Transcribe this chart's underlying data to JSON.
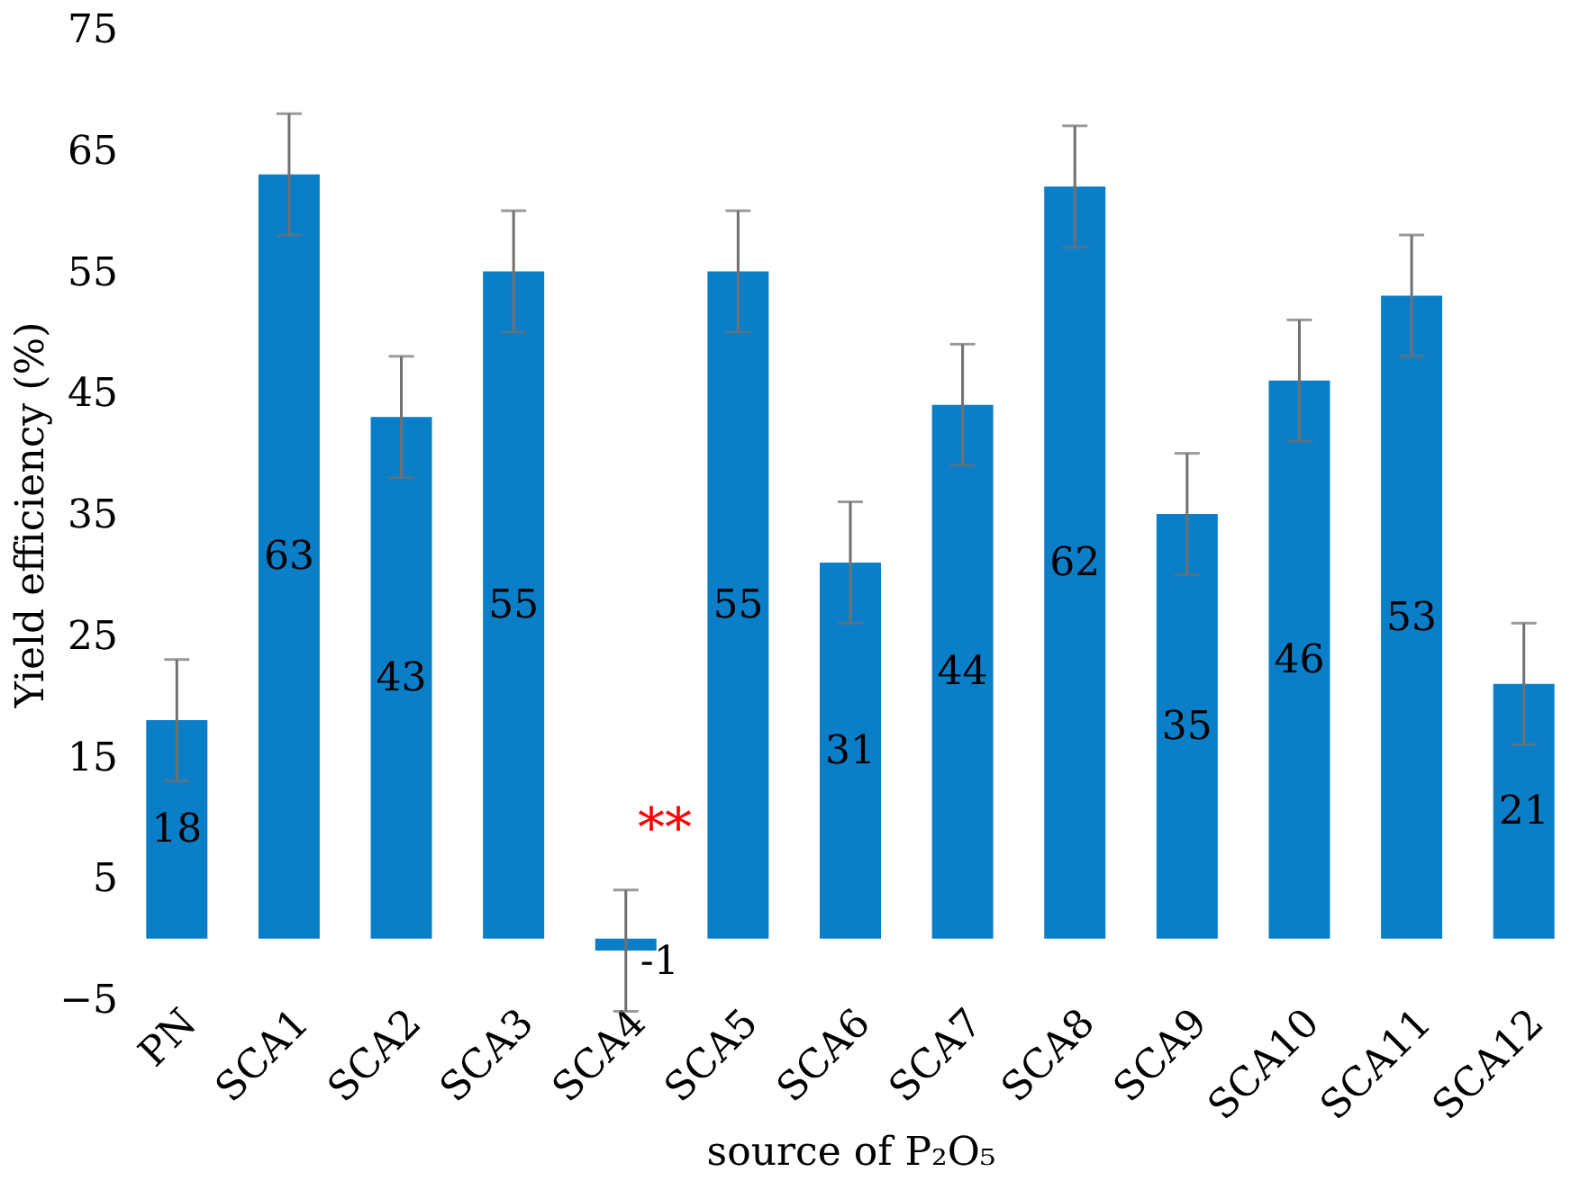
{
  "chart_data": {
    "type": "bar",
    "xlabel": "source of P₂O₅",
    "ylabel": "Yield efficiency  (%)",
    "categories": [
      "PN",
      "SCA1",
      "SCA2",
      "SCA3",
      "SCA4",
      "SCA5",
      "SCA6",
      "SCA7",
      "SCA8",
      "SCA9",
      "SCA10",
      "SCA11",
      "SCA12"
    ],
    "values": [
      18,
      63,
      43,
      55,
      -1,
      55,
      31,
      44,
      62,
      35,
      46,
      53,
      21
    ],
    "errors": [
      5,
      5,
      5,
      5,
      5,
      5,
      5,
      5,
      5,
      5,
      5,
      5,
      5
    ],
    "color": "#0a7fc8",
    "data_labels": true,
    "grid": false,
    "ylim": [
      -5,
      75
    ],
    "yticks": [
      -5,
      5,
      15,
      25,
      35,
      45,
      55,
      65,
      75
    ],
    "annotations": [
      "**"
    ]
  }
}
